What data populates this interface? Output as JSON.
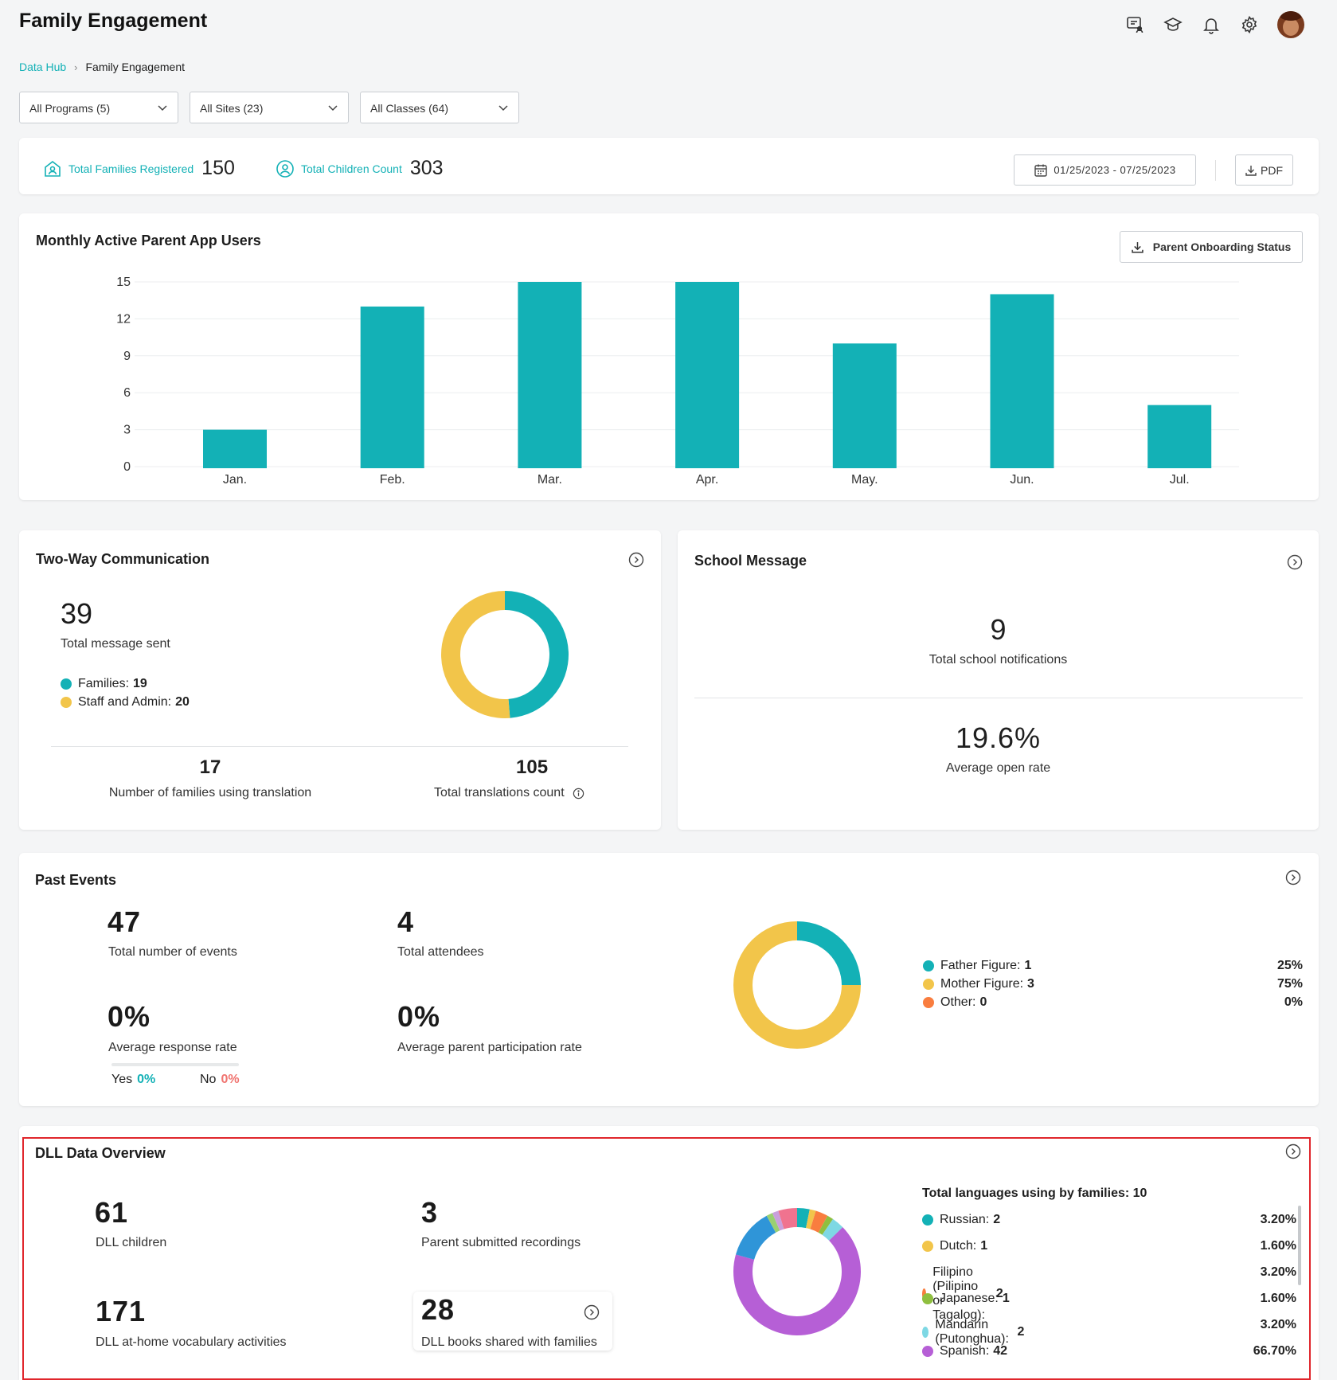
{
  "header": {
    "title": "Family Engagement",
    "icons": [
      "chat-user-icon",
      "graduation-cap-icon",
      "bell-icon",
      "gear-icon",
      "avatar"
    ]
  },
  "breadcrumb": {
    "root": "Data Hub",
    "current": "Family Engagement"
  },
  "filters": {
    "programs": "All Programs (5)",
    "sites": "All Sites (23)",
    "classes": "All Classes (64)"
  },
  "summary": {
    "families_label": "Total Families Registered",
    "families_value": "150",
    "children_label": "Total Children Count",
    "children_value": "303",
    "date_range": "01/25/2023 - 07/25/2023",
    "pdf_label": "PDF"
  },
  "monthly": {
    "title": "Monthly Active Parent App Users",
    "button_label": "Parent Onboarding Status"
  },
  "chart_data": {
    "type": "bar",
    "categories": [
      "Jan.",
      "Feb.",
      "Mar.",
      "Apr.",
      "May.",
      "Jun.",
      "Jul."
    ],
    "values": [
      3,
      13,
      15,
      15,
      10,
      14,
      5
    ],
    "title": "Monthly Active Parent App Users",
    "xlabel": "",
    "ylabel": "",
    "ylim": [
      0,
      15
    ],
    "yticks": [
      "0",
      "3",
      "6",
      "9",
      "12",
      "15"
    ],
    "grid": true,
    "color": "#13b1b6"
  },
  "two_way": {
    "title": "Two-Way Communication",
    "total_value": "39",
    "total_label": "Total message sent",
    "legend": [
      {
        "label": "Families:",
        "value": "19",
        "color": "#13b1b6",
        "num": 19
      },
      {
        "label": "Staff and Admin:",
        "value": "20",
        "color": "#f2c54a",
        "num": 20
      }
    ],
    "families_translation_value": "17",
    "families_translation_label": "Number of families using translation",
    "translations_value": "105",
    "translations_label": "Total translations count"
  },
  "school_message": {
    "title": "School Message",
    "notifications_value": "9",
    "notifications_label": "Total school notifications",
    "open_rate_value": "19.6%",
    "open_rate_label": "Average open rate"
  },
  "past_events": {
    "title": "Past Events",
    "events_value": "47",
    "events_label": "Total number of events",
    "attendees_value": "4",
    "attendees_label": "Total attendees",
    "response_value": "0%",
    "response_label": "Average response rate",
    "yes_label": "Yes",
    "yes_value": "0%",
    "no_label": "No",
    "no_value": "0%",
    "participation_value": "0%",
    "participation_label": "Average parent participation rate",
    "legend": [
      {
        "label": "Father Figure:",
        "value": "1",
        "pct": "25%",
        "color": "#13b1b6",
        "num": 1
      },
      {
        "label": "Mother Figure:",
        "value": "3",
        "pct": "75%",
        "color": "#f2c54a",
        "num": 3
      },
      {
        "label": "Other:",
        "value": "0",
        "pct": "0%",
        "color": "#f97d3f",
        "num": 0
      }
    ]
  },
  "dll": {
    "title": "DLL Data Overview",
    "children_value": "61",
    "children_label": "DLL children",
    "recordings_value": "3",
    "recordings_label": "Parent submitted recordings",
    "vocab_value": "171",
    "vocab_label": "DLL at-home vocabulary activities",
    "books_value": "28",
    "books_label": "DLL books shared with families",
    "languages_title": "Total languages using by families: 10",
    "languages": [
      {
        "label": "Russian:",
        "value": "2",
        "pct": "3.20%",
        "color": "#13b1b6"
      },
      {
        "label": "Dutch:",
        "value": "1",
        "pct": "1.60%",
        "color": "#f2c54a"
      },
      {
        "label": "Filipino (Pilipino or Tagalog):",
        "value": "2",
        "pct": "3.20%",
        "color": "#f97d3f"
      },
      {
        "label": "Japanese:",
        "value": "1",
        "pct": "1.60%",
        "color": "#8fbf3f"
      },
      {
        "label": "Mandarin (Putonghua):",
        "value": "2",
        "pct": "3.20%",
        "color": "#7ed8e4"
      },
      {
        "label": "Spanish:",
        "value": "42",
        "pct": "66.70%",
        "color": "#b65fd6"
      }
    ],
    "donut_segments": [
      {
        "color": "#13b1b6",
        "num": 2
      },
      {
        "color": "#f2c54a",
        "num": 1
      },
      {
        "color": "#f97d3f",
        "num": 2
      },
      {
        "color": "#8fbf3f",
        "num": 1
      },
      {
        "color": "#7ed8e4",
        "num": 2
      },
      {
        "color": "#b65fd6",
        "num": 42
      },
      {
        "color": "#2f95d8",
        "num": 8
      },
      {
        "color": "#9ad071",
        "num": 1
      },
      {
        "color": "#c9a0dc",
        "num": 1
      },
      {
        "color": "#f0738f",
        "num": 3
      }
    ]
  }
}
